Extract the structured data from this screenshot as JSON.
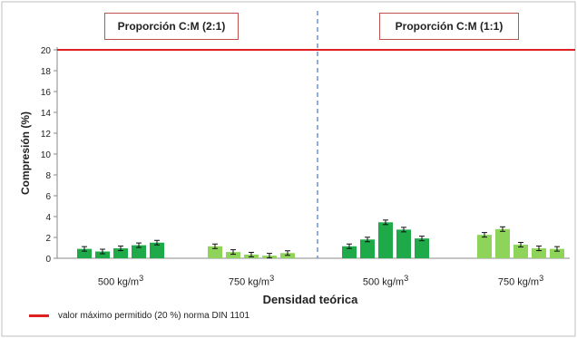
{
  "chart_data": {
    "type": "bar",
    "xlabel": "Densidad teórica",
    "ylabel": "Compresión (%)",
    "ylim": [
      0,
      20
    ],
    "yticks": [
      0,
      2,
      4,
      6,
      8,
      10,
      12,
      14,
      16,
      18,
      20
    ],
    "grid": false,
    "panels": [
      {
        "label": "Proporción C:M (2:1)",
        "groups": [
          {
            "label": "500 kg/m3",
            "label_main": "500 kg/m",
            "label_sup": "3",
            "color": "#1faa4a",
            "values": [
              0.9,
              0.65,
              0.95,
              1.25,
              1.5
            ]
          },
          {
            "label": "750 kg/m3",
            "label_main": "750 kg/m",
            "label_sup": "3",
            "color": "#8fd45a",
            "values": [
              1.15,
              0.6,
              0.35,
              0.25,
              0.5
            ]
          }
        ]
      },
      {
        "label": "Proporción C:M (1:1)",
        "groups": [
          {
            "label": "500 kg/m3",
            "label_main": "500 kg/m",
            "label_sup": "3",
            "color": "#1faa4a",
            "values": [
              1.15,
              1.8,
              3.45,
              2.75,
              1.9
            ]
          },
          {
            "label": "750 kg/m3",
            "label_main": "750 kg/m",
            "label_sup": "3",
            "color": "#8fd45a",
            "values": [
              2.25,
              2.8,
              1.3,
              0.95,
              0.9
            ]
          }
        ]
      }
    ],
    "reference_line": {
      "value": 20,
      "color": "#e02020",
      "label": "valor máximo permitido (20 %) norma DIN 1101"
    },
    "legend_position": "bottom-left"
  }
}
